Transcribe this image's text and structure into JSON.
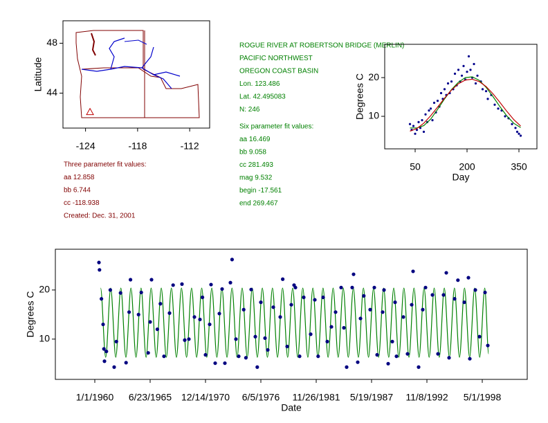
{
  "station": [
    "ROGUE RIVER AT ROBERTSON BRIDGE (MERLIN)",
    "PACIFIC NORTHWEST",
    "OREGON COAST BASIN",
    "Lon. 123.486",
    "Lat. 42.495083",
    "N: 246"
  ],
  "six_parameter_fit": [
    "Six parameter fit values:",
    "aa 16.469",
    "bb 9.058",
    "cc 281.493",
    "mag 9.532",
    "begin -17.561",
    "end 269.467"
  ],
  "three_parameter_fit": [
    "Three parameter fit values:",
    "aa 12.858",
    "bb 6.744",
    "cc -118.938",
    "Created:   Dec. 31, 2001"
  ],
  "chart_data": [
    {
      "type": "map",
      "ylabel": "Latitude",
      "xlim": [
        -126.6,
        -109.7
      ],
      "ylim": [
        41.2,
        49.8
      ],
      "xticks": [
        -124,
        -118,
        -112
      ],
      "yticks": [
        44,
        48
      ],
      "series": [
        {
          "color": "#c00000",
          "marker": "triangle",
          "x": [
            -123.486
          ],
          "values": [
            42.495
          ]
        }
      ]
    },
    {
      "type": "scatter",
      "xlabel": "Day",
      "ylabel": "Degrees C",
      "xlim": [
        -38,
        402
      ],
      "ylim": [
        1.6,
        28.6
      ],
      "xticks": [
        50,
        200,
        350
      ],
      "yticks": [
        10,
        20
      ],
      "series": [
        {
          "color": "#00008b",
          "marker": "dot",
          "x": [
            35,
            40,
            45,
            50,
            55,
            60,
            65,
            70,
            75,
            80,
            85,
            90,
            95,
            100,
            105,
            110,
            115,
            120,
            125,
            130,
            135,
            140,
            145,
            150,
            155,
            160,
            165,
            170,
            175,
            180,
            185,
            190,
            195,
            200,
            205,
            210,
            215,
            220,
            225,
            230,
            240,
            245,
            255,
            260,
            270,
            280,
            290,
            300,
            310,
            320,
            330,
            340,
            345,
            350,
            355
          ],
          "values": [
            8,
            6.5,
            7.5,
            5.5,
            6.5,
            8.5,
            7,
            9,
            6,
            10.5,
            8.5,
            11.5,
            12,
            9,
            13.5,
            11,
            14,
            12.5,
            16,
            14.5,
            17,
            15.5,
            18.5,
            16,
            19,
            17,
            21,
            18,
            22,
            19,
            20.5,
            23,
            19.5,
            21.5,
            25.5,
            22,
            20,
            23.5,
            18.5,
            20.5,
            19,
            17,
            16.5,
            14.5,
            15.5,
            13,
            12,
            11.5,
            10,
            9.5,
            8,
            7,
            6,
            5.5,
            5
          ]
        },
        {
          "color": "#008000",
          "marker": "line",
          "x": [
            35,
            55,
            75,
            95,
            115,
            135,
            155,
            175,
            195,
            215,
            235,
            255,
            275,
            295,
            315,
            335,
            355
          ],
          "values": [
            7.0,
            7.0,
            7.6,
            9.3,
            11.8,
            14.5,
            16.9,
            18.8,
            20.0,
            20.2,
            19.3,
            17.5,
            15.1,
            12.5,
            10.1,
            8.2,
            7.1
          ]
        },
        {
          "color": "#c00000",
          "marker": "line",
          "x": [
            35,
            55,
            75,
            95,
            115,
            135,
            155,
            175,
            195,
            215,
            235,
            255,
            275,
            295,
            315,
            335,
            355
          ],
          "values": [
            6.17,
            6.85,
            8.23,
            10.16,
            12.4,
            14.7,
            16.78,
            18.41,
            19.37,
            19.58,
            18.99,
            17.69,
            15.82,
            13.6,
            11.29,
            9.16,
            7.48
          ]
        }
      ]
    },
    {
      "type": "scatter",
      "xlabel": "Date",
      "ylabel": "Degrees C",
      "xlim": [
        -1425,
        15625
      ],
      "ylim": [
        1.8,
        28.3
      ],
      "xticks": [
        {
          "value": 0,
          "label": "1/1/1960"
        },
        {
          "value": 2000,
          "label": "6/23/1965"
        },
        {
          "value": 4000,
          "label": "12/14/1970"
        },
        {
          "value": 6000,
          "label": "6/5/1976"
        },
        {
          "value": 8000,
          "label": "11/26/1981"
        },
        {
          "value": 10000,
          "label": "5/19/1987"
        },
        {
          "value": 12000,
          "label": "11/8/1992"
        },
        {
          "value": 14000,
          "label": "5/1/1998"
        }
      ],
      "yticks": [
        10,
        20
      ],
      "series": [
        {
          "color": "#008000",
          "marker": "smooth",
          "x": [
            210,
            393,
            575,
            758,
            941,
            1124,
            1306,
            1489,
            1671,
            1854,
            2036,
            2219,
            2402,
            2585,
            2767,
            2950,
            3132,
            3315,
            3497,
            3680,
            3863,
            4046,
            4228,
            4411,
            4593,
            4776,
            4958,
            5141,
            5324,
            5507,
            5689,
            5872,
            6054,
            6237,
            6419,
            6602,
            6785,
            6968,
            7150,
            7333,
            7515,
            7698,
            7880,
            8063,
            8246,
            8429,
            8611,
            8794,
            8976,
            9159,
            9341,
            9524,
            9707,
            9890,
            10072,
            10255,
            10437,
            10620,
            10802,
            10985,
            11168,
            11351,
            11533,
            11716,
            11898,
            12081,
            12263,
            12446,
            12629,
            12812,
            12994,
            13177,
            13359,
            13542,
            13724,
            13907,
            14090,
            14230
          ],
          "values": [
            20.4,
            6.3,
            20.4,
            6.3,
            20.4,
            6.3,
            20.4,
            6.3,
            20.4,
            6.3,
            20.4,
            6.3,
            20.4,
            6.3,
            20.4,
            6.3,
            20.4,
            6.3,
            20.4,
            6.3,
            20.4,
            6.3,
            20.4,
            6.3,
            20.4,
            6.3,
            20.4,
            6.3,
            20.4,
            6.3,
            20.4,
            6.3,
            20.4,
            6.3,
            20.4,
            6.3,
            20.4,
            6.3,
            20.4,
            6.3,
            20.4,
            6.3,
            20.4,
            6.3,
            20.4,
            6.3,
            20.4,
            6.3,
            20.4,
            6.3,
            20.4,
            6.3,
            20.4,
            6.3,
            20.4,
            6.3,
            20.4,
            6.3,
            20.4,
            6.3,
            20.4,
            6.3,
            20.4,
            6.3,
            20.4,
            6.3,
            20.4,
            6.3,
            20.4,
            6.3,
            20.4,
            6.3,
            20.4,
            6.3,
            20.4,
            6.3,
            20.4,
            7
          ]
        },
        {
          "color": "#000080",
          "marker": "dot",
          "x": [
            150,
            170,
            240,
            300,
            330,
            350,
            420,
            560,
            700,
            780,
            930,
            1130,
            1240,
            1290,
            1580,
            1680,
            1930,
            2000,
            2050,
            2260,
            2370,
            2500,
            2700,
            2830,
            3150,
            3250,
            3400,
            3600,
            3800,
            3890,
            4000,
            4150,
            4200,
            4350,
            4500,
            4600,
            4700,
            4900,
            4960,
            5100,
            5200,
            5380,
            5460,
            5650,
            5800,
            5870,
            6000,
            6150,
            6250,
            6450,
            6700,
            6790,
            6950,
            7100,
            7200,
            7250,
            7400,
            7550,
            7800,
            7950,
            8070,
            8250,
            8400,
            8550,
            8700,
            8900,
            9000,
            9100,
            9300,
            9350,
            9500,
            9600,
            9720,
            9950,
            10100,
            10200,
            10400,
            10450,
            10600,
            10750,
            10850,
            10900,
            11150,
            11300,
            11450,
            11500,
            11700,
            11850,
            11950,
            12200,
            12400,
            12600,
            12700,
            12800,
            13000,
            13120,
            13350,
            13500,
            13550,
            13750,
            13900,
            14100,
            14200
          ],
          "values": [
            25.6,
            24.1,
            18.2,
            13,
            8,
            5.5,
            7.5,
            20,
            4.3,
            9.5,
            19.4,
            5.2,
            15.5,
            22.1,
            15,
            19.5,
            7.2,
            13.5,
            22.1,
            12,
            17.2,
            6.5,
            15.3,
            21,
            21.2,
            9.8,
            10,
            14.5,
            14,
            18.5,
            6.8,
            13,
            21.1,
            5.1,
            15.2,
            20.2,
            5.1,
            21.5,
            26.2,
            10,
            6.5,
            16,
            6.2,
            20.1,
            10.5,
            4.3,
            17.5,
            10.2,
            7.8,
            16.5,
            14.5,
            22.2,
            8.5,
            17,
            21,
            20.5,
            6.5,
            18.5,
            11,
            18,
            6.5,
            18.5,
            9.5,
            12.5,
            15.5,
            20.5,
            12.3,
            4.3,
            20.5,
            23.2,
            5.3,
            14.2,
            18.8,
            16,
            20.5,
            6.8,
            15.5,
            20,
            5,
            9.5,
            17.5,
            6.5,
            14.5,
            7,
            17,
            23.8,
            4.3,
            16,
            20.5,
            19,
            7,
            19,
            23.5,
            6.2,
            18.2,
            22,
            17.5,
            22.5,
            6,
            20,
            10.5,
            19.5,
            8.7
          ]
        }
      ]
    }
  ]
}
